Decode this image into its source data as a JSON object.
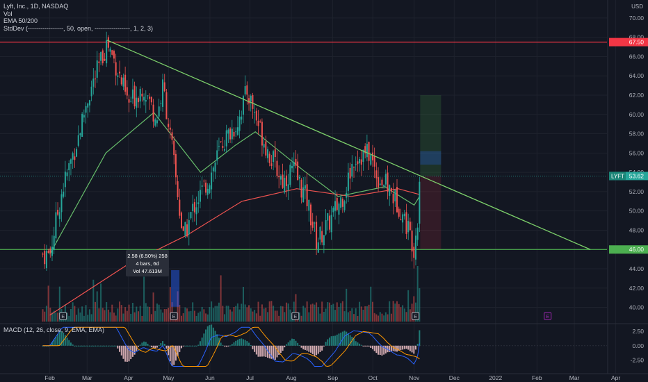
{
  "legend": {
    "symbol": "Lyft, Inc., 1D, NASDAQ",
    "vol": "Vol",
    "ema": "EMA 50/200",
    "stddev": "StdDev (-----------------, 50, open, -----------------, 1, 2, 3)"
  },
  "macd_label": "MACD (12, 26, close, 9, EMA, EMA)",
  "currency": "USD",
  "colors": {
    "background": "#131722",
    "up": "#26a69a",
    "down": "#ef5350",
    "trendline": "#7ccf6a",
    "resistance": "#f23645",
    "support": "#4caf50",
    "ema50": "#66bb6a",
    "ema200": "#ef5350",
    "macd": "#2962ff",
    "signal": "#ff9800",
    "ticker_badge": "#26a69a",
    "event_marker": "#9c27b0"
  },
  "measure": {
    "line1": "2.58 (6.50%) 258",
    "line2": "4 bars, 6d",
    "line3": "Vol 47.613M"
  },
  "price_badges": {
    "ticker": "LYFT",
    "last": "53.62",
    "resistance": "67.50",
    "support": "46.00"
  },
  "earnings_marker": "E",
  "chart_data": {
    "type": "candlestick",
    "title": "Lyft, Inc., 1D, NASDAQ",
    "price_axis": {
      "ticks": [
        "70.00",
        "68.00",
        "66.00",
        "64.00",
        "62.00",
        "60.00",
        "58.00",
        "56.00",
        "54.00",
        "52.00",
        "50.00",
        "48.00",
        "46.00",
        "44.00",
        "42.00",
        "40.00"
      ],
      "range": [
        38.6,
        71.0
      ]
    },
    "macd_axis": {
      "ticks": [
        "2.50",
        "0.00",
        "-2.50"
      ],
      "range": [
        -3.9,
        3.6
      ]
    },
    "time_axis": [
      "Feb",
      "Mar",
      "Apr",
      "May",
      "Jun",
      "Jul",
      "Aug",
      "Sep",
      "Oct",
      "Nov",
      "Dec",
      "2022",
      "Feb",
      "Mar",
      "Apr"
    ],
    "close_path": [
      [
        "2021-02-01",
        45.5
      ],
      [
        "2021-02-10",
        52.0
      ],
      [
        "2021-02-22",
        57.5
      ],
      [
        "2021-03-01",
        61.5
      ],
      [
        "2021-03-10",
        65.0
      ],
      [
        "2021-03-16",
        67.5
      ],
      [
        "2021-03-23",
        65.0
      ],
      [
        "2021-04-01",
        61.0
      ],
      [
        "2021-04-12",
        63.0
      ],
      [
        "2021-04-22",
        59.5
      ],
      [
        "2021-04-27",
        63.0
      ],
      [
        "2021-05-05",
        55.0
      ],
      [
        "2021-05-12",
        47.0
      ],
      [
        "2021-05-20",
        50.5
      ],
      [
        "2021-06-01",
        53.5
      ],
      [
        "2021-06-10",
        57.0
      ],
      [
        "2021-06-21",
        59.0
      ],
      [
        "2021-06-29",
        62.5
      ],
      [
        "2021-07-06",
        59.5
      ],
      [
        "2021-07-15",
        56.0
      ],
      [
        "2021-07-26",
        53.0
      ],
      [
        "2021-08-02",
        54.5
      ],
      [
        "2021-08-13",
        51.0
      ],
      [
        "2021-08-20",
        46.8
      ],
      [
        "2021-08-30",
        49.0
      ],
      [
        "2021-09-10",
        52.0
      ],
      [
        "2021-09-17",
        55.5
      ],
      [
        "2021-09-28",
        56.0
      ],
      [
        "2021-10-05",
        53.5
      ],
      [
        "2021-10-12",
        52.5
      ],
      [
        "2021-10-21",
        50.5
      ],
      [
        "2021-10-28",
        48.0
      ],
      [
        "2021-11-01",
        46.2
      ],
      [
        "2021-11-04",
        49.8
      ],
      [
        "2021-11-05",
        53.6
      ]
    ],
    "annotations": {
      "resistance": 67.5,
      "support": 46.0,
      "last_price": 53.62,
      "trendline": [
        [
          "2021-03-16",
          67.7
        ],
        [
          "2022-03-13",
          46.0
        ]
      ],
      "ema50": [
        [
          "2021-02-01",
          45.5
        ],
        [
          "2021-03-15",
          56.0
        ],
        [
          "2021-04-20",
          60.2
        ],
        [
          "2021-05-25",
          54.0
        ],
        [
          "2021-06-20",
          56.8
        ],
        [
          "2021-07-05",
          58.2
        ],
        [
          "2021-08-10",
          54.2
        ],
        [
          "2021-09-05",
          51.5
        ],
        [
          "2021-10-10",
          52.5
        ],
        [
          "2021-11-01",
          50.6
        ],
        [
          "2021-11-05",
          51.5
        ]
      ],
      "ema200": [
        [
          "2021-02-01",
          39.2
        ],
        [
          "2021-04-01",
          44.5
        ],
        [
          "2021-05-15",
          47.5
        ],
        [
          "2021-06-25",
          51.0
        ],
        [
          "2021-08-05",
          52.3
        ],
        [
          "2021-09-15",
          51.5
        ],
        [
          "2021-10-20",
          52.3
        ],
        [
          "2021-11-05",
          51.7
        ]
      ]
    },
    "position_tool": {
      "entry": 53.62,
      "target": 62.0,
      "stop": 46.0
    },
    "measurement": {
      "change": 2.58,
      "change_pct": 6.5,
      "ticks": 258,
      "bars": 4,
      "days": 6,
      "volume": "47.613M"
    }
  }
}
